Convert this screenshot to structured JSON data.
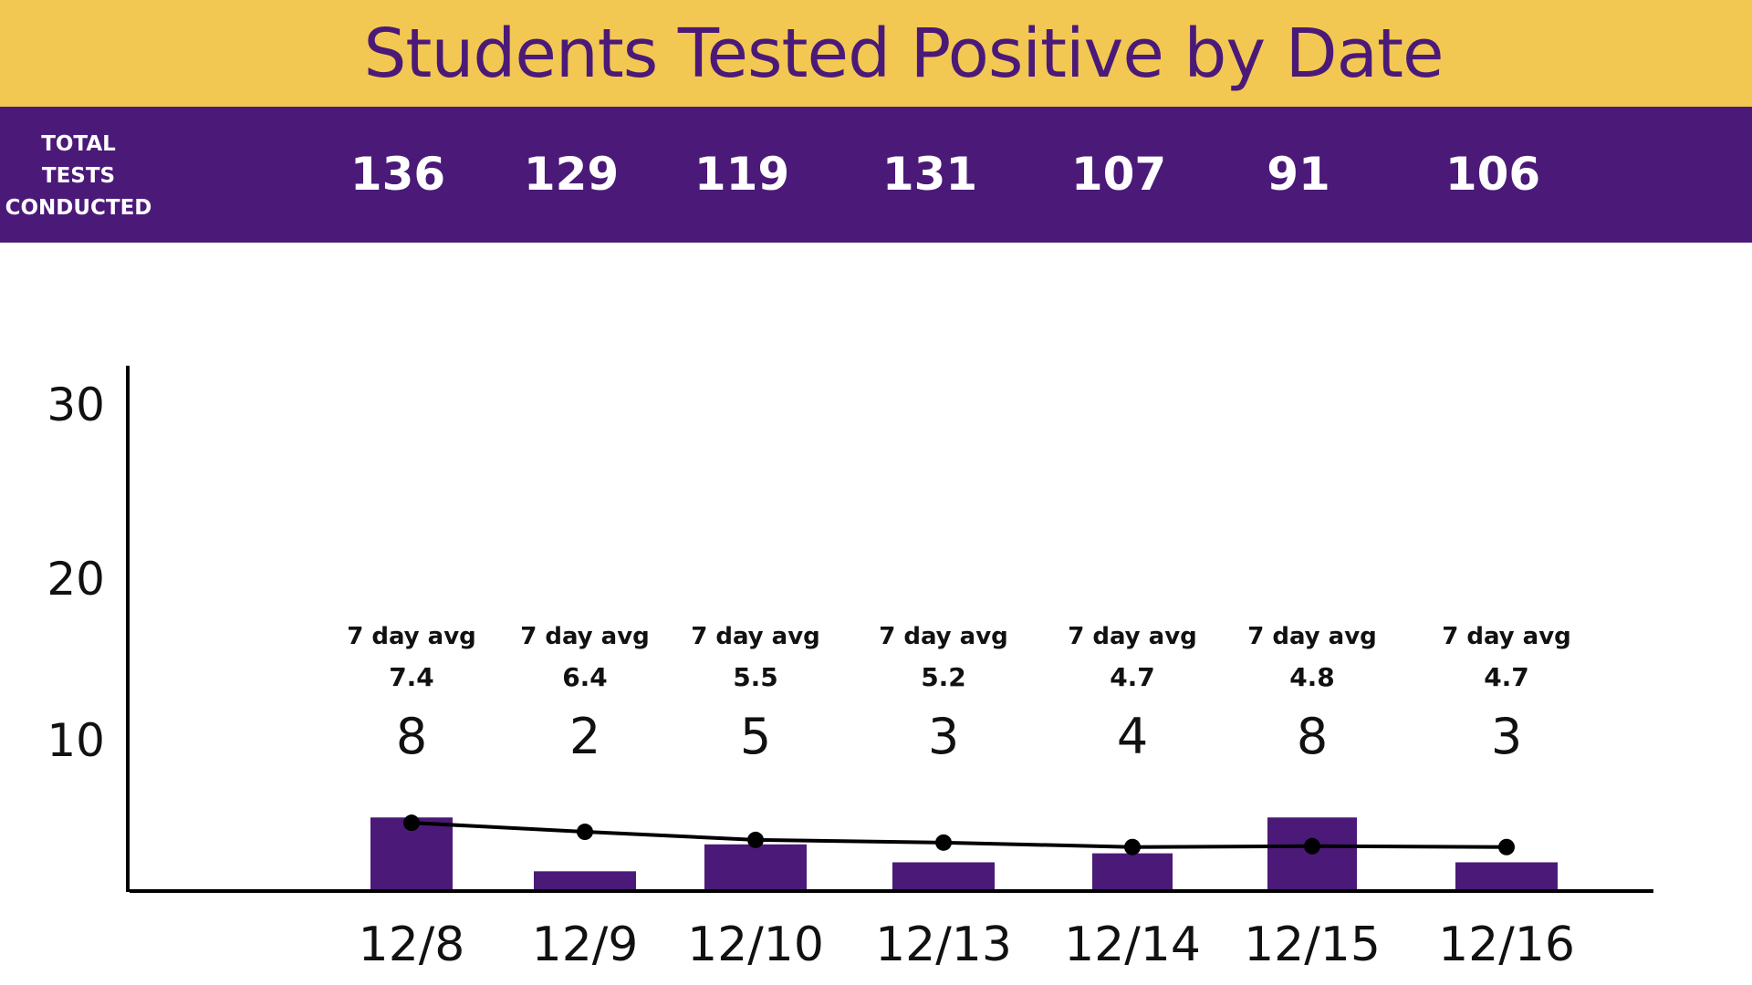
{
  "title": "Students Tested Positive by Date",
  "tests_label": [
    "TOTAL",
    "TESTS",
    "CONDUCTED"
  ],
  "colors": {
    "header": "#F3C852",
    "accent": "#4B1A78",
    "bar": "#4B1A78",
    "line": "#000000"
  },
  "chart_data": {
    "type": "bar",
    "title": "Students Tested Positive by Date",
    "categories": [
      "12/8",
      "12/9",
      "12/10",
      "12/13",
      "12/14",
      "12/15",
      "12/16"
    ],
    "series": [
      {
        "values": [
          8,
          2,
          5,
          3,
          4,
          8,
          3
        ]
      },
      {
        "values": [
          7.4,
          6.4,
          5.5,
          5.2,
          4.7,
          4.8,
          4.7
        ]
      }
    ],
    "total_tests": [
      136,
      129,
      119,
      131,
      107,
      91,
      106
    ],
    "avg_label": "7 day avg",
    "yticks": [
      10,
      20,
      30
    ],
    "ylim": [
      0,
      30
    ],
    "grid": false,
    "xlabel": "",
    "ylabel": ""
  }
}
